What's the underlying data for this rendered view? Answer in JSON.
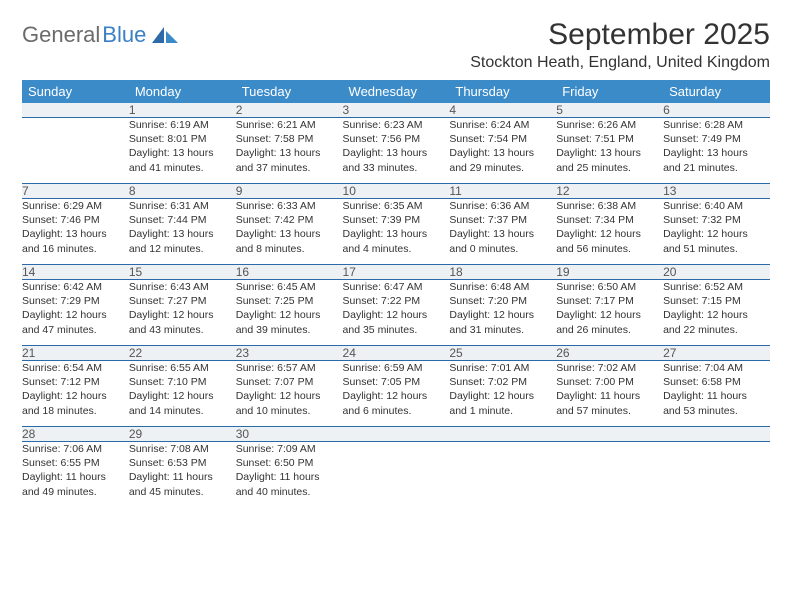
{
  "logo": {
    "text1": "General",
    "text2": "Blue"
  },
  "title": "September 2025",
  "location": "Stockton Heath, England, United Kingdom",
  "colors": {
    "header_bg": "#3b8bc9",
    "header_text": "#ffffff",
    "daynum_bg": "#eef1f3",
    "row_border": "#2a6aa8",
    "logo_grey": "#6b6b6b",
    "logo_blue": "#3b7fc4"
  },
  "weekdays": [
    "Sunday",
    "Monday",
    "Tuesday",
    "Wednesday",
    "Thursday",
    "Friday",
    "Saturday"
  ],
  "weeks": [
    {
      "nums": [
        "",
        "1",
        "2",
        "3",
        "4",
        "5",
        "6"
      ],
      "cells": [
        {},
        {
          "sunrise": "Sunrise: 6:19 AM",
          "sunset": "Sunset: 8:01 PM",
          "day1": "Daylight: 13 hours",
          "day2": "and 41 minutes."
        },
        {
          "sunrise": "Sunrise: 6:21 AM",
          "sunset": "Sunset: 7:58 PM",
          "day1": "Daylight: 13 hours",
          "day2": "and 37 minutes."
        },
        {
          "sunrise": "Sunrise: 6:23 AM",
          "sunset": "Sunset: 7:56 PM",
          "day1": "Daylight: 13 hours",
          "day2": "and 33 minutes."
        },
        {
          "sunrise": "Sunrise: 6:24 AM",
          "sunset": "Sunset: 7:54 PM",
          "day1": "Daylight: 13 hours",
          "day2": "and 29 minutes."
        },
        {
          "sunrise": "Sunrise: 6:26 AM",
          "sunset": "Sunset: 7:51 PM",
          "day1": "Daylight: 13 hours",
          "day2": "and 25 minutes."
        },
        {
          "sunrise": "Sunrise: 6:28 AM",
          "sunset": "Sunset: 7:49 PM",
          "day1": "Daylight: 13 hours",
          "day2": "and 21 minutes."
        }
      ]
    },
    {
      "nums": [
        "7",
        "8",
        "9",
        "10",
        "11",
        "12",
        "13"
      ],
      "cells": [
        {
          "sunrise": "Sunrise: 6:29 AM",
          "sunset": "Sunset: 7:46 PM",
          "day1": "Daylight: 13 hours",
          "day2": "and 16 minutes."
        },
        {
          "sunrise": "Sunrise: 6:31 AM",
          "sunset": "Sunset: 7:44 PM",
          "day1": "Daylight: 13 hours",
          "day2": "and 12 minutes."
        },
        {
          "sunrise": "Sunrise: 6:33 AM",
          "sunset": "Sunset: 7:42 PM",
          "day1": "Daylight: 13 hours",
          "day2": "and 8 minutes."
        },
        {
          "sunrise": "Sunrise: 6:35 AM",
          "sunset": "Sunset: 7:39 PM",
          "day1": "Daylight: 13 hours",
          "day2": "and 4 minutes."
        },
        {
          "sunrise": "Sunrise: 6:36 AM",
          "sunset": "Sunset: 7:37 PM",
          "day1": "Daylight: 13 hours",
          "day2": "and 0 minutes."
        },
        {
          "sunrise": "Sunrise: 6:38 AM",
          "sunset": "Sunset: 7:34 PM",
          "day1": "Daylight: 12 hours",
          "day2": "and 56 minutes."
        },
        {
          "sunrise": "Sunrise: 6:40 AM",
          "sunset": "Sunset: 7:32 PM",
          "day1": "Daylight: 12 hours",
          "day2": "and 51 minutes."
        }
      ]
    },
    {
      "nums": [
        "14",
        "15",
        "16",
        "17",
        "18",
        "19",
        "20"
      ],
      "cells": [
        {
          "sunrise": "Sunrise: 6:42 AM",
          "sunset": "Sunset: 7:29 PM",
          "day1": "Daylight: 12 hours",
          "day2": "and 47 minutes."
        },
        {
          "sunrise": "Sunrise: 6:43 AM",
          "sunset": "Sunset: 7:27 PM",
          "day1": "Daylight: 12 hours",
          "day2": "and 43 minutes."
        },
        {
          "sunrise": "Sunrise: 6:45 AM",
          "sunset": "Sunset: 7:25 PM",
          "day1": "Daylight: 12 hours",
          "day2": "and 39 minutes."
        },
        {
          "sunrise": "Sunrise: 6:47 AM",
          "sunset": "Sunset: 7:22 PM",
          "day1": "Daylight: 12 hours",
          "day2": "and 35 minutes."
        },
        {
          "sunrise": "Sunrise: 6:48 AM",
          "sunset": "Sunset: 7:20 PM",
          "day1": "Daylight: 12 hours",
          "day2": "and 31 minutes."
        },
        {
          "sunrise": "Sunrise: 6:50 AM",
          "sunset": "Sunset: 7:17 PM",
          "day1": "Daylight: 12 hours",
          "day2": "and 26 minutes."
        },
        {
          "sunrise": "Sunrise: 6:52 AM",
          "sunset": "Sunset: 7:15 PM",
          "day1": "Daylight: 12 hours",
          "day2": "and 22 minutes."
        }
      ]
    },
    {
      "nums": [
        "21",
        "22",
        "23",
        "24",
        "25",
        "26",
        "27"
      ],
      "cells": [
        {
          "sunrise": "Sunrise: 6:54 AM",
          "sunset": "Sunset: 7:12 PM",
          "day1": "Daylight: 12 hours",
          "day2": "and 18 minutes."
        },
        {
          "sunrise": "Sunrise: 6:55 AM",
          "sunset": "Sunset: 7:10 PM",
          "day1": "Daylight: 12 hours",
          "day2": "and 14 minutes."
        },
        {
          "sunrise": "Sunrise: 6:57 AM",
          "sunset": "Sunset: 7:07 PM",
          "day1": "Daylight: 12 hours",
          "day2": "and 10 minutes."
        },
        {
          "sunrise": "Sunrise: 6:59 AM",
          "sunset": "Sunset: 7:05 PM",
          "day1": "Daylight: 12 hours",
          "day2": "and 6 minutes."
        },
        {
          "sunrise": "Sunrise: 7:01 AM",
          "sunset": "Sunset: 7:02 PM",
          "day1": "Daylight: 12 hours",
          "day2": "and 1 minute."
        },
        {
          "sunrise": "Sunrise: 7:02 AM",
          "sunset": "Sunset: 7:00 PM",
          "day1": "Daylight: 11 hours",
          "day2": "and 57 minutes."
        },
        {
          "sunrise": "Sunrise: 7:04 AM",
          "sunset": "Sunset: 6:58 PM",
          "day1": "Daylight: 11 hours",
          "day2": "and 53 minutes."
        }
      ]
    },
    {
      "nums": [
        "28",
        "29",
        "30",
        "",
        "",
        "",
        ""
      ],
      "cells": [
        {
          "sunrise": "Sunrise: 7:06 AM",
          "sunset": "Sunset: 6:55 PM",
          "day1": "Daylight: 11 hours",
          "day2": "and 49 minutes."
        },
        {
          "sunrise": "Sunrise: 7:08 AM",
          "sunset": "Sunset: 6:53 PM",
          "day1": "Daylight: 11 hours",
          "day2": "and 45 minutes."
        },
        {
          "sunrise": "Sunrise: 7:09 AM",
          "sunset": "Sunset: 6:50 PM",
          "day1": "Daylight: 11 hours",
          "day2": "and 40 minutes."
        },
        {},
        {},
        {},
        {}
      ]
    }
  ]
}
